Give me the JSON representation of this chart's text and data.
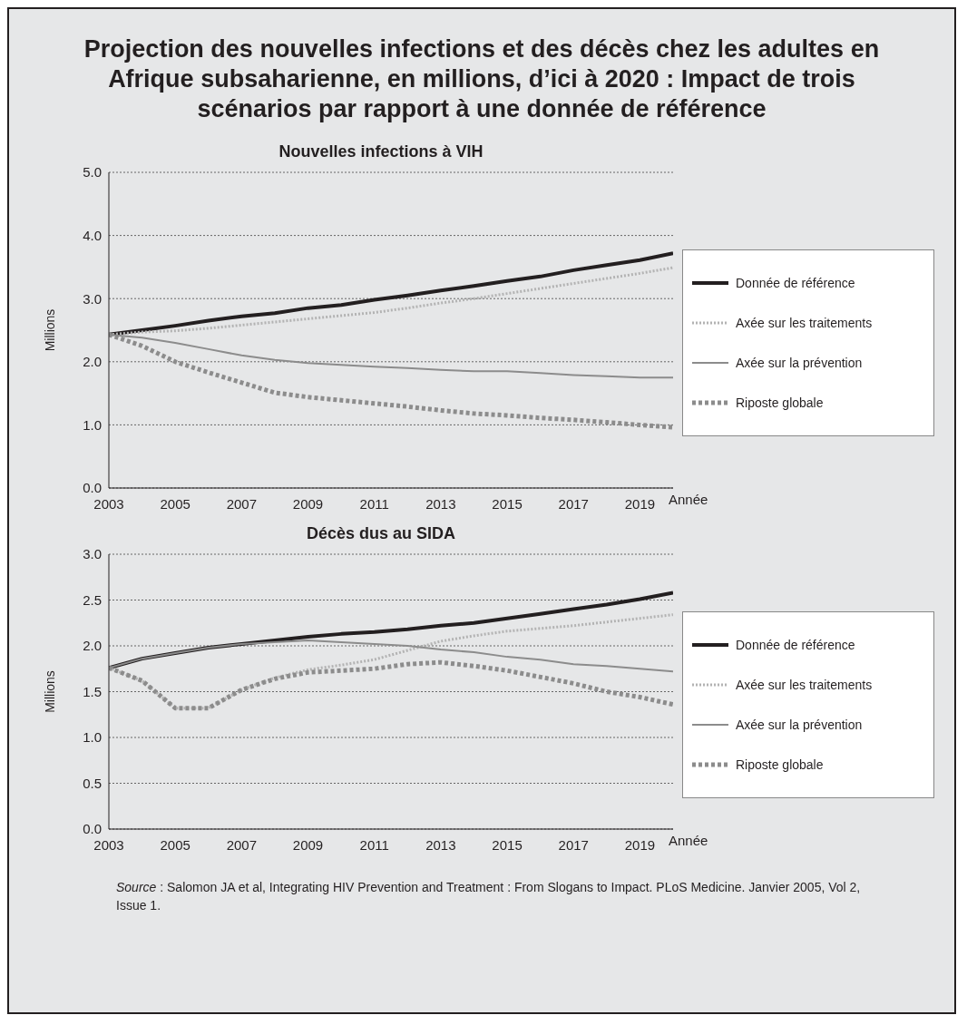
{
  "chart_data": [
    {
      "type": "line",
      "title": "Projection des nouvelles infections et des décès chez les adultes en Afrique subsaharienne, en millions, d’ici à 2020 : Impact de trois scénarios par rapport à une donnée de référence",
      "subtitle": "Nouvelles infections à VIH",
      "xlabel": "Année",
      "ylabel": "Millions",
      "x": [
        2003,
        2004,
        2005,
        2006,
        2007,
        2008,
        2009,
        2010,
        2011,
        2012,
        2013,
        2014,
        2015,
        2016,
        2017,
        2018,
        2019,
        2020
      ],
      "xlim": [
        2003,
        2020
      ],
      "xticks": [
        2003,
        2005,
        2007,
        2009,
        2011,
        2013,
        2015,
        2017,
        2019
      ],
      "ylim": [
        0,
        5
      ],
      "yticks": [
        {
          "value": 0,
          "label": "0.0"
        },
        {
          "value": 1,
          "label": "1.0"
        },
        {
          "value": 2,
          "label": "2.0"
        },
        {
          "value": 3,
          "label": "3.0"
        },
        {
          "value": 4,
          "label": "4.0"
        },
        {
          "value": 5,
          "label": "5.0"
        }
      ],
      "grid": "y",
      "legend": "right",
      "marker": "none",
      "series": [
        {
          "name": "Donnée de référence",
          "color": "#231f20",
          "line_style": "solid",
          "values": [
            2.43,
            2.5,
            2.57,
            2.65,
            2.72,
            2.77,
            2.85,
            2.9,
            2.98,
            3.05,
            3.13,
            3.2,
            3.28,
            3.35,
            3.45,
            3.53,
            3.61,
            3.72
          ]
        },
        {
          "name": "Axée sur les traitements",
          "color": "#b3b3b3",
          "line_style": "dotted",
          "values": [
            2.43,
            2.47,
            2.49,
            2.53,
            2.58,
            2.63,
            2.68,
            2.73,
            2.78,
            2.85,
            2.93,
            3.0,
            3.08,
            3.16,
            3.24,
            3.32,
            3.4,
            3.49
          ]
        },
        {
          "name": "Axée sur la prévention",
          "color": "#8c8c8c",
          "line_style": "solid",
          "values": [
            2.43,
            2.38,
            2.3,
            2.2,
            2.1,
            2.03,
            1.98,
            1.95,
            1.92,
            1.9,
            1.87,
            1.85,
            1.85,
            1.82,
            1.79,
            1.77,
            1.75,
            1.75
          ]
        },
        {
          "name": "Riposte globale",
          "color": "#8c8c8c",
          "line_style": "dotted",
          "values": [
            2.43,
            2.25,
            2.0,
            1.83,
            1.67,
            1.51,
            1.44,
            1.39,
            1.34,
            1.29,
            1.23,
            1.18,
            1.15,
            1.11,
            1.08,
            1.04,
            1.0,
            0.96
          ]
        }
      ]
    },
    {
      "type": "line",
      "title": "Décès dus au SIDA",
      "xlabel": "Année",
      "ylabel": "Millions",
      "x": [
        2003,
        2004,
        2005,
        2006,
        2007,
        2008,
        2009,
        2010,
        2011,
        2012,
        2013,
        2014,
        2015,
        2016,
        2017,
        2018,
        2019,
        2020
      ],
      "xlim": [
        2003,
        2020
      ],
      "xticks": [
        2003,
        2005,
        2007,
        2009,
        2011,
        2013,
        2015,
        2017,
        2019
      ],
      "ylim": [
        0,
        3
      ],
      "yticks": [
        {
          "value": 0,
          "label": "0.0"
        },
        {
          "value": 0.5,
          "label": "0.5"
        },
        {
          "value": 1,
          "label": "1.0"
        },
        {
          "value": 1.5,
          "label": "1.5"
        },
        {
          "value": 2,
          "label": "2.0"
        },
        {
          "value": 2.5,
          "label": "2.5"
        },
        {
          "value": 3,
          "label": "3.0"
        }
      ],
      "grid": "y",
      "legend": "right",
      "marker": "none",
      "annotations": [
        "Source : Salomon JA et al, Integrating HIV Prevention and Treatment : From Slogans to Impact. PLoS Medicine. Janvier 2005, Vol 2, Issue 1."
      ],
      "series": [
        {
          "name": "Donnée de référence",
          "color": "#231f20",
          "line_style": "solid",
          "values": [
            1.76,
            1.86,
            1.92,
            1.98,
            2.02,
            2.06,
            2.1,
            2.13,
            2.15,
            2.18,
            2.22,
            2.25,
            2.3,
            2.35,
            2.4,
            2.45,
            2.51,
            2.58
          ]
        },
        {
          "name": "Axée sur les traitements",
          "color": "#b3b3b3",
          "line_style": "dotted",
          "values": [
            1.76,
            1.62,
            1.32,
            1.32,
            1.52,
            1.65,
            1.74,
            1.79,
            1.85,
            1.95,
            2.05,
            2.11,
            2.16,
            2.19,
            2.22,
            2.26,
            2.3,
            2.34
          ]
        },
        {
          "name": "Axée sur la prévention",
          "color": "#8c8c8c",
          "line_style": "solid",
          "values": [
            1.76,
            1.86,
            1.92,
            1.98,
            2.02,
            2.04,
            2.06,
            2.04,
            2.02,
            2.0,
            1.96,
            1.93,
            1.88,
            1.85,
            1.8,
            1.78,
            1.75,
            1.72
          ]
        },
        {
          "name": "Riposte globale",
          "color": "#8c8c8c",
          "line_style": "dotted",
          "values": [
            1.76,
            1.62,
            1.32,
            1.32,
            1.52,
            1.64,
            1.71,
            1.73,
            1.75,
            1.8,
            1.82,
            1.78,
            1.73,
            1.66,
            1.59,
            1.5,
            1.44,
            1.36
          ]
        }
      ]
    }
  ]
}
